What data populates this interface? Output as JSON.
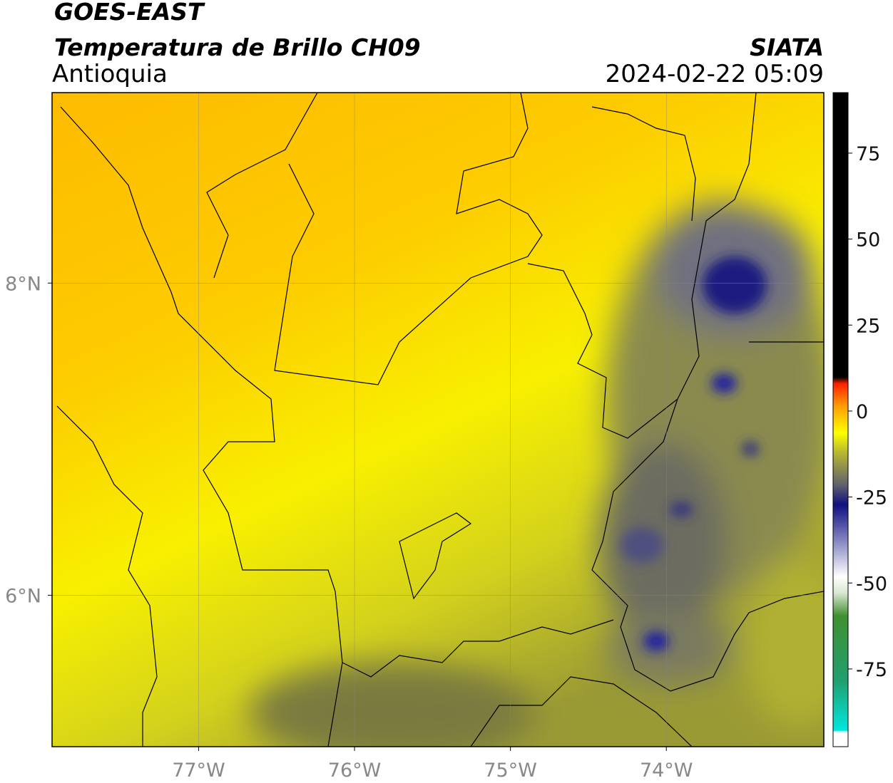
{
  "header": {
    "title": "GOES-EAST",
    "subtitle": "Temperatura de Brillo CH09",
    "region": "Antioquia",
    "source": "SIATA",
    "datetime": "2024-02-22 05:09"
  },
  "map": {
    "xlim": [
      -77.94,
      -72.99
    ],
    "ylim": [
      5.03,
      9.22
    ],
    "xticks": [
      {
        "value": -77,
        "label": "77°W"
      },
      {
        "value": -76,
        "label": "76°W"
      },
      {
        "value": -75,
        "label": "75°W"
      },
      {
        "value": -74,
        "label": "74°W"
      }
    ],
    "yticks": [
      {
        "value": 6,
        "label": "6°N"
      },
      {
        "value": 8,
        "label": "8°N"
      }
    ],
    "grid": true
  },
  "colorbar": {
    "lim": [
      -97.6,
      92.6
    ],
    "ticks": [
      -75,
      -50,
      -25,
      0,
      25,
      50,
      75
    ]
  }
}
